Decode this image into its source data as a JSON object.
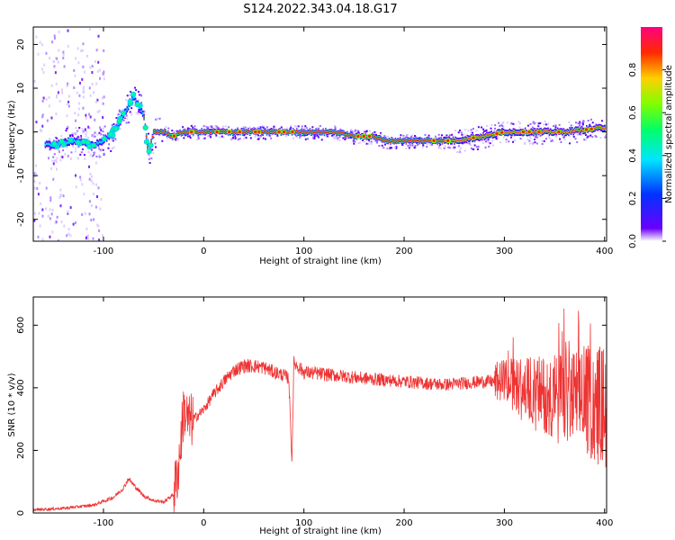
{
  "title": "S124.2022.343.04.18.G17",
  "chart_data": [
    {
      "type": "heatmap",
      "xlabel": "Height of straight line (km)",
      "ylabel": "Frequency (Hz)",
      "xlim": [
        -170,
        402
      ],
      "ylim": [
        -25,
        24
      ],
      "xticks": [
        -100,
        0,
        100,
        200,
        300,
        400
      ],
      "yticks": [
        -20,
        -10,
        0,
        10,
        20
      ],
      "colorbar": {
        "label": "Normalized spectral amplitude",
        "range": [
          0.0,
          1.0
        ],
        "ticks": [
          "0.0",
          "0.2",
          "0.4",
          "0.6",
          "0.8"
        ],
        "colors": [
          "#ffffff",
          "#6a00ff",
          "#0033ff",
          "#00e5ff",
          "#00ff66",
          "#7fff00",
          "#ffd000",
          "#ff2a00",
          "#ff0080"
        ]
      },
      "ridge": {
        "x": [
          -150,
          -130,
          -110,
          -100,
          -90,
          -80,
          -70,
          -65,
          -60,
          -55,
          -50,
          -40,
          -30,
          -20,
          0,
          30,
          60,
          100,
          130,
          150,
          170,
          180,
          200,
          220,
          250,
          280,
          300,
          330,
          360,
          380,
          400
        ],
        "y": [
          -3,
          -2,
          -3,
          -2,
          0,
          4,
          8,
          6,
          4,
          -5,
          0,
          0,
          -1,
          0,
          0,
          0,
          0,
          0,
          0,
          -1,
          -1,
          -2,
          -2,
          -2,
          -2,
          -1,
          0,
          0,
          0,
          0.5,
          1
        ]
      }
    },
    {
      "type": "line",
      "xlabel": "Height of straight line (km)",
      "ylabel": "SNR (10 * v/v)",
      "xlim": [
        -170,
        402
      ],
      "ylim": [
        0,
        690
      ],
      "xticks": [
        -100,
        0,
        100,
        200,
        300,
        400
      ],
      "yticks": [
        0,
        200,
        400,
        600
      ],
      "color": "#ee3333",
      "series": [
        {
          "x": [
            -170,
            -140,
            -110,
            -90,
            -80,
            -75,
            -70,
            -60,
            -50,
            -40,
            -30,
            -25,
            -20,
            -15,
            -10,
            0,
            10,
            20,
            30,
            40,
            50,
            60,
            70,
            80,
            85,
            88,
            90,
            100,
            130,
            160,
            200,
            240,
            260,
            280,
            300,
            320,
            340,
            360,
            380,
            400
          ],
          "y": [
            10,
            15,
            25,
            50,
            80,
            110,
            90,
            55,
            40,
            35,
            60,
            150,
            330,
            290,
            300,
            330,
            380,
            420,
            455,
            470,
            470,
            465,
            450,
            440,
            430,
            160,
            480,
            450,
            440,
            430,
            420,
            410,
            415,
            420,
            420,
            400,
            380,
            370,
            360,
            340
          ]
        }
      ]
    }
  ]
}
